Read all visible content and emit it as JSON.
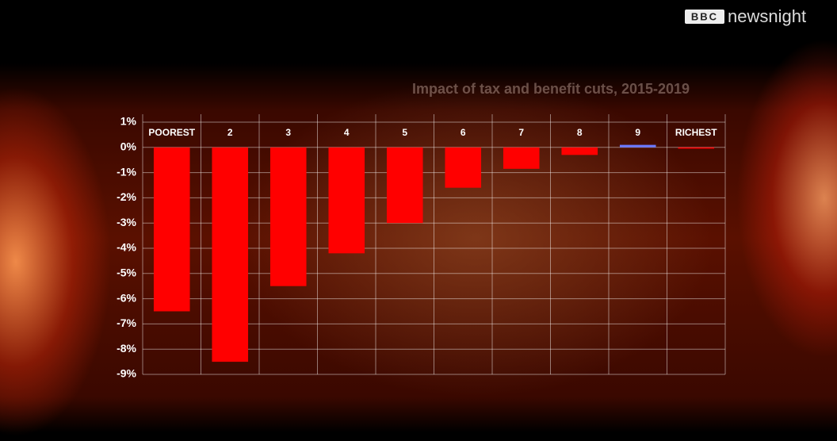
{
  "brand": {
    "mark": "BBC",
    "name": "newsnight"
  },
  "chart_data": {
    "type": "bar",
    "title": "Impact of tax and benefit cuts, 2015-2019",
    "categories": [
      "POOREST",
      "2",
      "3",
      "4",
      "5",
      "6",
      "7",
      "8",
      "9",
      "RICHEST"
    ],
    "values": [
      -6.5,
      -8.5,
      -5.5,
      -4.2,
      -3.0,
      -1.6,
      -0.85,
      -0.3,
      0.1,
      -0.05
    ],
    "colors": [
      "#ff0000",
      "#ff0000",
      "#ff0000",
      "#ff0000",
      "#ff0000",
      "#ff0000",
      "#ff0000",
      "#ff0000",
      "#6a78ff",
      "#ff0000"
    ],
    "ylim": [
      -9,
      1
    ],
    "yticks": [
      {
        "value": 1,
        "label": "1%"
      },
      {
        "value": 0,
        "label": "0%"
      },
      {
        "value": -1,
        "label": "-1%"
      },
      {
        "value": -2,
        "label": "-2%"
      },
      {
        "value": -3,
        "label": "-3%"
      },
      {
        "value": -4,
        "label": "-4%"
      },
      {
        "value": -5,
        "label": "-5%"
      },
      {
        "value": -6,
        "label": "-6%"
      },
      {
        "value": -7,
        "label": "-7%"
      },
      {
        "value": -8,
        "label": "-8%"
      },
      {
        "value": -9,
        "label": "-9%"
      }
    ],
    "grid": true
  }
}
